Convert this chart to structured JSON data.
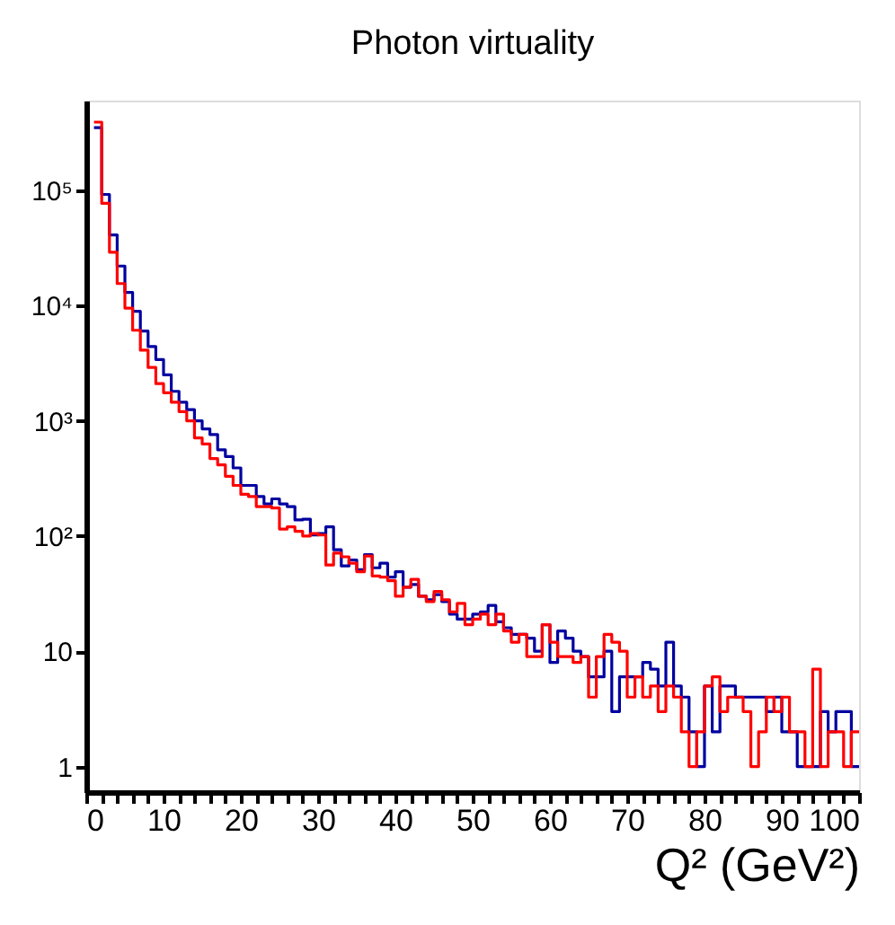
{
  "chart_data": {
    "type": "histogram",
    "title": "Photon virtuality",
    "xlabel": "Q² (GeV²)",
    "bins": [
      1,
      2,
      3,
      4,
      5,
      6,
      7,
      8,
      9,
      10,
      11,
      12,
      13,
      14,
      15,
      16,
      17,
      18,
      19,
      20,
      21,
      22,
      23,
      24,
      25,
      26,
      27,
      28,
      29,
      30,
      31,
      32,
      33,
      34,
      35,
      36,
      37,
      38,
      39,
      40,
      41,
      42,
      43,
      44,
      45,
      46,
      47,
      48,
      49,
      50,
      51,
      52,
      53,
      54,
      55,
      56,
      57,
      58,
      59,
      60,
      61,
      62,
      63,
      64,
      65,
      66,
      67,
      68,
      69,
      70,
      71,
      72,
      73,
      74,
      75,
      76,
      77,
      78,
      79,
      80,
      81,
      82,
      83,
      84,
      85,
      86,
      87,
      88,
      89,
      90,
      91,
      92,
      93,
      94,
      95,
      96,
      97,
      98,
      99,
      100
    ],
    "series": [
      {
        "color": "#0000a0",
        "values": [
          350000,
          92000,
          41000,
          22000,
          13000,
          8900,
          6000,
          4400,
          3400,
          2500,
          1800,
          1450,
          1250,
          1000,
          850,
          760,
          560,
          490,
          390,
          275,
          275,
          220,
          190,
          210,
          190,
          180,
          138,
          140,
          102,
          105,
          120,
          76,
          55,
          62,
          51,
          69,
          53,
          58,
          44,
          49,
          36,
          38,
          30,
          28,
          31,
          27,
          21,
          19,
          19,
          21,
          22,
          25,
          18,
          16,
          14,
          14,
          13,
          10,
          17,
          8,
          15,
          13,
          10,
          9,
          6,
          6,
          10,
          3,
          6,
          6,
          6,
          8,
          7,
          5,
          12,
          5,
          4,
          2,
          1,
          5,
          2,
          5,
          5,
          4,
          4,
          4,
          4,
          3,
          4,
          2,
          2,
          1,
          1,
          1,
          3,
          2,
          3,
          3,
          1
        ]
      },
      {
        "color": "#ff0000",
        "values": [
          390000,
          77000,
          29000,
          15500,
          9500,
          6100,
          4100,
          2900,
          2100,
          1750,
          1450,
          1200,
          1000,
          710,
          630,
          470,
          415,
          330,
          275,
          230,
          220,
          180,
          180,
          175,
          115,
          120,
          110,
          100,
          105,
          102,
          56,
          71,
          66,
          58,
          49,
          67,
          45,
          44,
          41,
          30,
          36,
          42,
          30,
          27,
          33,
          28,
          22,
          26,
          17,
          19,
          21,
          17,
          21,
          15,
          12,
          14,
          9,
          9,
          17,
          12,
          9,
          9,
          8,
          9,
          4,
          9,
          14,
          12,
          10,
          4,
          6,
          4,
          5,
          3,
          5,
          4,
          2,
          1,
          2,
          5,
          6,
          3,
          4,
          4,
          3,
          1,
          2,
          4,
          3,
          4,
          2,
          2,
          1,
          7,
          1,
          2,
          2,
          1,
          2
        ]
      }
    ],
    "xlim": [
      0,
      100
    ],
    "ylim": [
      0.6,
      600000
    ],
    "log": true,
    "xticks": [
      0,
      {
        "value": 2,
        "label": null
      },
      {
        "value": 4,
        "label": null
      },
      {
        "value": 6,
        "label": null
      },
      {
        "value": 8,
        "label": null
      },
      10,
      {
        "value": 12,
        "label": null
      },
      {
        "value": 14,
        "label": null
      },
      {
        "value": 16,
        "label": null
      },
      {
        "value": 18,
        "label": null
      },
      20,
      {
        "value": 22,
        "label": null
      },
      {
        "value": 24,
        "label": null
      },
      {
        "value": 26,
        "label": null
      },
      {
        "value": 28,
        "label": null
      },
      30,
      {
        "value": 32,
        "label": null
      },
      {
        "value": 34,
        "label": null
      },
      {
        "value": 36,
        "label": null
      },
      {
        "value": 38,
        "label": null
      },
      40,
      {
        "value": 42,
        "label": null
      },
      {
        "value": 44,
        "label": null
      },
      {
        "value": 46,
        "label": null
      },
      {
        "value": 48,
        "label": null
      },
      50,
      {
        "value": 52,
        "label": null
      },
      {
        "value": 54,
        "label": null
      },
      {
        "value": 56,
        "label": null
      },
      {
        "value": 58,
        "label": null
      },
      60,
      {
        "value": 62,
        "label": null
      },
      {
        "value": 64,
        "label": null
      },
      {
        "value": 66,
        "label": null
      },
      {
        "value": 68,
        "label": null
      },
      70,
      {
        "value": 72,
        "label": null
      },
      {
        "value": 74,
        "label": null
      },
      {
        "value": 76,
        "label": null
      },
      {
        "value": 78,
        "label": null
      },
      80,
      {
        "value": 82,
        "label": null
      },
      {
        "value": 84,
        "label": null
      },
      {
        "value": 86,
        "label": null
      },
      {
        "value": 88,
        "label": null
      },
      90,
      {
        "value": 92,
        "label": null
      },
      {
        "value": 94,
        "label": null
      },
      {
        "value": 96,
        "label": null
      },
      {
        "value": 98,
        "label": null
      },
      100
    ],
    "yticks": [
      1,
      10,
      {
        "value": 100,
        "label": "10²"
      },
      {
        "value": 1000,
        "label": "10³"
      },
      {
        "value": 10000,
        "label": "10⁴"
      },
      {
        "value": 100000,
        "label": "10⁵"
      }
    ],
    "grid": false,
    "legend": false
  }
}
